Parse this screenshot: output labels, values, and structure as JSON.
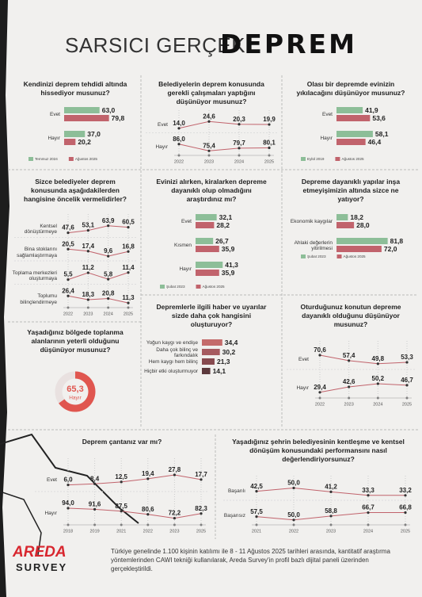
{
  "title": "SARSICI GERÇEK:",
  "title_highlight": "DEPREM",
  "brand": {
    "name": "AREDA",
    "subtitle": "SURVEY"
  },
  "footer": "Türkiye genelinde 1.100 kişinin katılımı ile 8 - 11 Ağustos 2025 tarihleri arasında, kantitatif araştırma yöntemlerinden CAWI tekniği kullanılarak, Areda Survey'in profil bazlı dijital paneli üzerinden gerçekleştirildi.",
  "chart_data": [
    {
      "type": "bar",
      "title": "Kendinizi deprem tehdidi altında hissediyor musunuz?",
      "categories": [
        "Evet",
        "Hayır"
      ],
      "series": [
        {
          "name": "Temmuz 2024",
          "color": "#8dbe98",
          "values": [
            63.0,
            37.0
          ],
          "value_labels": [
            "63,0",
            "37,0"
          ]
        },
        {
          "name": "Ağustos 2025",
          "color": "#c1636c",
          "values": [
            79.8,
            20.2
          ],
          "value_labels": [
            "79,8",
            "20,2"
          ]
        }
      ]
    },
    {
      "type": "line",
      "title": "Belediyelerin deprem konusunda gerekli çalışmaları yaptığını düşünüyor musunuz?",
      "categories": [
        "2022",
        "2023",
        "2024",
        "2025"
      ],
      "series": [
        {
          "name": "Evet",
          "color": "#c1636c",
          "values": [
            14.0,
            24.6,
            20.3,
            19.9
          ],
          "value_labels": [
            "14,0",
            "24,6",
            "20,3",
            "19,9"
          ]
        },
        {
          "name": "Hayır",
          "color": "#c1636c",
          "values": [
            86.0,
            75.4,
            79.7,
            80.1
          ],
          "value_labels": [
            "86,0",
            "75,4",
            "79,7",
            "80,1"
          ]
        }
      ]
    },
    {
      "type": "bar",
      "title": "Olası bir depremde evinizin yıkılacağını düşünüyor musunuz?",
      "categories": [
        "Evet",
        "Hayır"
      ],
      "series": [
        {
          "name": "Eylül 2019",
          "color": "#8dbe98",
          "values": [
            41.9,
            58.1
          ],
          "value_labels": [
            "41,9",
            "58,1"
          ]
        },
        {
          "name": "Ağustos 2025",
          "color": "#c1636c",
          "values": [
            53.6,
            46.4
          ],
          "value_labels": [
            "53,6",
            "46,4"
          ]
        }
      ]
    },
    {
      "type": "line",
      "title": "Sizce belediyeler deprem konusunda aşağıdakilerden hangisine öncelik vermelidirler?",
      "categories": [
        "2022",
        "2023",
        "2024",
        "2025"
      ],
      "series": [
        {
          "name": "Kentsel dönüştürmeye",
          "color": "#c1636c",
          "values": [
            47.6,
            53.1,
            63.9,
            60.5
          ],
          "value_labels": [
            "47,6",
            "53,1",
            "63,9",
            "60,5"
          ]
        },
        {
          "name": "Bina stoklarını sağlamlaştırmaya",
          "color": "#c1636c",
          "values": [
            20.5,
            17.4,
            9.6,
            16.8
          ],
          "value_labels": [
            "20,5",
            "17,4",
            "9,6",
            "16,8"
          ]
        },
        {
          "name": "Toplama merkezleri oluşturmaya",
          "color": "#c1636c",
          "values": [
            5.5,
            11.2,
            5.8,
            11.4
          ],
          "value_labels": [
            "5,5",
            "11,2",
            "5,8",
            "11,4"
          ]
        },
        {
          "name": "Toplumu bilinçlendirmeye",
          "color": "#c1636c",
          "values": [
            26.4,
            18.3,
            20.8,
            11.3
          ],
          "value_labels": [
            "26,4",
            "18,3",
            "20,8",
            "11,3"
          ]
        }
      ]
    },
    {
      "type": "bar",
      "title": "Evinizi alırken, kiralarken depreme dayanıklı olup olmadığını araştırdınız mı?",
      "categories": [
        "Evet",
        "Kısmen",
        "Hayır"
      ],
      "series": [
        {
          "name": "Şubat 2023",
          "color": "#8dbe98",
          "values": [
            32.1,
            26.7,
            41.3
          ],
          "value_labels": [
            "32,1",
            "26,7",
            "41,3"
          ]
        },
        {
          "name": "Ağustos 2025",
          "color": "#c1636c",
          "values": [
            28.2,
            35.9,
            35.9
          ],
          "value_labels": [
            "28,2",
            "35,9",
            "35,9"
          ]
        }
      ]
    },
    {
      "type": "bar",
      "title": "Depreme dayanıklı yapılar inşa etmeyişimizin altında sizce ne yatıyor?",
      "categories": [
        "Ekonomik kaygılar",
        "Ahlaki değerlerin yitirilmesi"
      ],
      "series": [
        {
          "name": "Şubat 2023",
          "color": "#8dbe98",
          "values": [
            18.2,
            81.8
          ],
          "value_labels": [
            "18,2",
            "81,8"
          ]
        },
        {
          "name": "Ağustos 2025",
          "color": "#c1636c",
          "values": [
            28.0,
            72.0
          ],
          "value_labels": [
            "28,0",
            "72,0"
          ]
        }
      ]
    },
    {
      "type": "pie",
      "title": "Yaşadığınız bölgede toplanma alanlarının yeterli olduğunu düşünüyor musunuz?",
      "categories": [
        "Hayır"
      ],
      "values": [
        65.3
      ],
      "value_labels": [
        "65,3"
      ],
      "color": "#e0564f"
    },
    {
      "type": "bar",
      "title": "Depremlerle ilgili haber ve uyarılar sizde daha çok hangisini oluşturuyor?",
      "categories": [
        "Yoğun kaygı ve endişe",
        "Daha çok bilinç ve farkındalık",
        "Hem kaygı hem bilinç",
        "Hiçbir etki oluşturmuyor"
      ],
      "values": [
        34.4,
        30.2,
        21.3,
        14.1
      ],
      "value_labels": [
        "34,4",
        "30,2",
        "21,3",
        "14,1"
      ],
      "colors": [
        "#c46b6b",
        "#a65b60",
        "#874a4f",
        "#5c393c"
      ]
    },
    {
      "type": "line",
      "title": "Oturduğunuz konutun depreme dayanıklı olduğunu düşünüyor musunuz?",
      "categories": [
        "2022",
        "2023",
        "2024",
        "2025"
      ],
      "series": [
        {
          "name": "Evet",
          "color": "#c1636c",
          "values": [
            70.6,
            57.4,
            49.8,
            53.3
          ],
          "value_labels": [
            "70,6",
            "57,4",
            "49,8",
            "53,3"
          ]
        },
        {
          "name": "Hayır",
          "color": "#c1636c",
          "values": [
            29.4,
            42.6,
            50.2,
            46.7
          ],
          "value_labels": [
            "29,4",
            "42,6",
            "50,2",
            "46,7"
          ]
        }
      ]
    },
    {
      "type": "line",
      "title": "Deprem çantanız var mı?",
      "categories": [
        "2018",
        "2019",
        "2021",
        "2022",
        "2023",
        "2025"
      ],
      "series": [
        {
          "name": "Evet",
          "color": "#c1636c",
          "values": [
            6.0,
            8.4,
            12.5,
            19.4,
            27.8,
            17.7
          ],
          "value_labels": [
            "6,0",
            "8,4",
            "12,5",
            "19,4",
            "27,8",
            "17,7"
          ]
        },
        {
          "name": "Hayır",
          "color": "#c1636c",
          "values": [
            94.0,
            91.6,
            87.5,
            80.6,
            72.2,
            82.3
          ],
          "value_labels": [
            "94,0",
            "91,6",
            "87,5",
            "80,6",
            "72,2",
            "82,3"
          ]
        }
      ]
    },
    {
      "type": "line",
      "title": "Yaşadığınız şehrin belediyesinin kentleşme ve kentsel dönüşüm konusundaki performansını nasıl değerlendiriyorsunuz?",
      "categories": [
        "2021",
        "2022",
        "2023",
        "2024",
        "2025"
      ],
      "series": [
        {
          "name": "Başarılı",
          "color": "#c1636c",
          "values": [
            42.5,
            50.0,
            41.2,
            33.3,
            33.2
          ],
          "value_labels": [
            "42,5",
            "50,0",
            "41,2",
            "33,3",
            "33,2"
          ]
        },
        {
          "name": "Başarısız",
          "color": "#c1636c",
          "values": [
            57.5,
            50.0,
            58.8,
            66.7,
            66.8
          ],
          "value_labels": [
            "57,5",
            "50,0",
            "58,8",
            "66,7",
            "66,8"
          ]
        }
      ]
    }
  ]
}
